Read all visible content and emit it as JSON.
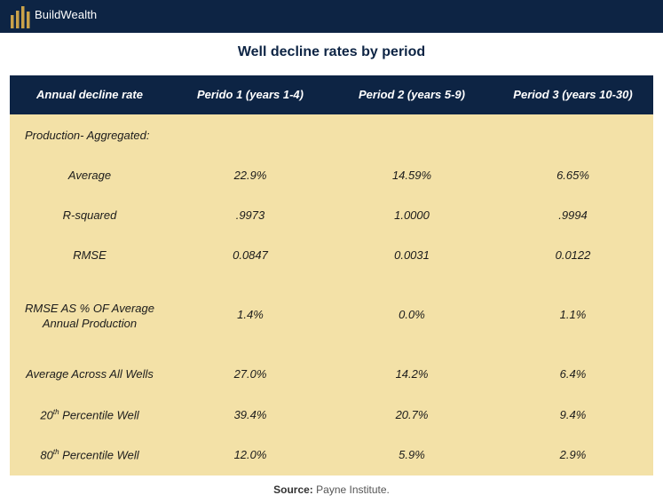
{
  "brand": {
    "name": "BuildWealth"
  },
  "title": "Well decline rates by period",
  "table": {
    "headers": [
      "Annual decline rate",
      "Perido 1 (years 1-4)",
      "Period 2 (years 5-9)",
      "Period 3 (years 10-30)"
    ],
    "section_label": "Production- Aggregated:",
    "rows": [
      {
        "label": "Average",
        "values": [
          "22.9%",
          "14.59%",
          "6.65%"
        ]
      },
      {
        "label": "R-squared",
        "values": [
          ".9973",
          "1.0000",
          ".9994"
        ]
      },
      {
        "label": "RMSE",
        "values": [
          "0.0847",
          "0.0031",
          "0.0122"
        ]
      },
      {
        "label": "RMSE AS % OF Average Annual Production",
        "values": [
          "1.4%",
          "0.0%",
          "1.1%"
        ]
      },
      {
        "label": "Average Across All Wells",
        "values": [
          "27.0%",
          "14.2%",
          "6.4%"
        ]
      },
      {
        "label_prefix": "20",
        "label_sup": "th",
        "label_suffix": " Percentile Well",
        "values": [
          "39.4%",
          "20.7%",
          "9.4%"
        ]
      },
      {
        "label_prefix": "80",
        "label_sup": "th",
        "label_suffix": " Percentile Well",
        "values": [
          "12.0%",
          "5.9%",
          "2.9%"
        ]
      }
    ]
  },
  "source": {
    "label": "Source:",
    "text": " Payne Institute."
  },
  "colors": {
    "navy": "#0d2444",
    "table_bg": "#f3e1a7",
    "logo_gold": "#c9a24a"
  }
}
